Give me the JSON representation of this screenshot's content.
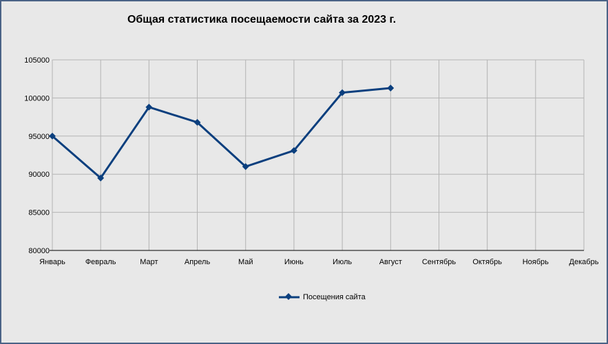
{
  "chart_data": {
    "type": "line",
    "title": "Общая статистика посещаемости сайта за 2023 г.",
    "xlabel": "",
    "ylabel": "",
    "categories": [
      "Январь",
      "Февраль",
      "Март",
      "Апрель",
      "Май",
      "Июнь",
      "Июль",
      "Август",
      "Сентябрь",
      "Октябрь",
      "Ноябрь",
      "Декабрь"
    ],
    "series": [
      {
        "name": "Посещения сайта",
        "values": [
          95000,
          89500,
          98800,
          96800,
          91000,
          93100,
          100700,
          101300,
          null,
          null,
          null,
          null
        ],
        "color": "#0b3f7e"
      }
    ],
    "ylim": [
      80000,
      105000
    ],
    "yticks": [
      "80000",
      "85000",
      "90000",
      "95000",
      "100000",
      "105000"
    ],
    "grid": true,
    "legend_position": "bottom"
  }
}
